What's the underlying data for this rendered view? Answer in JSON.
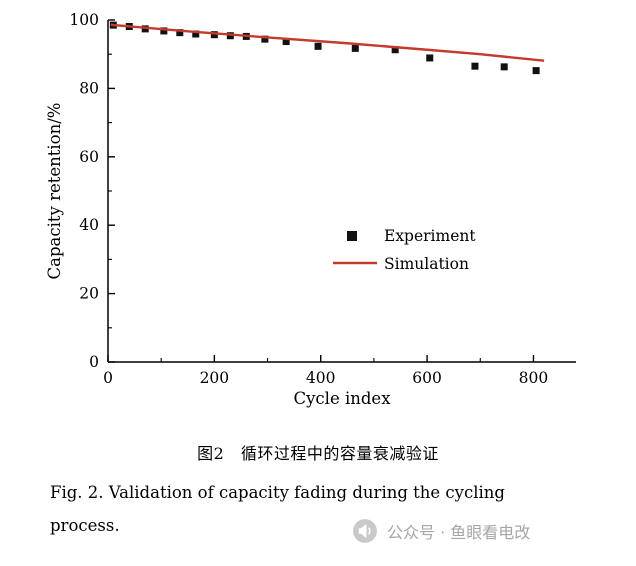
{
  "chart_data": {
    "type": "scatter",
    "title": "",
    "xlabel": "Cycle index",
    "ylabel": "Capacity retention/%",
    "xlim": [
      0,
      880
    ],
    "ylim": [
      0,
      100
    ],
    "xticks": [
      0,
      200,
      400,
      600,
      800
    ],
    "yticks": [
      0,
      20,
      40,
      60,
      80,
      100
    ],
    "x_minor_step": 100,
    "y_minor_step": 10,
    "grid": false,
    "legend_position": "center-right-inside",
    "series": [
      {
        "name": "Experiment",
        "type": "scatter",
        "marker": "square",
        "color": "#111111",
        "points": [
          [
            10,
            98.5
          ],
          [
            40,
            98.1
          ],
          [
            70,
            97.4
          ],
          [
            105,
            96.8
          ],
          [
            135,
            96.3
          ],
          [
            165,
            95.9
          ],
          [
            200,
            95.7
          ],
          [
            230,
            95.4
          ],
          [
            260,
            95.2
          ],
          [
            295,
            94.4
          ],
          [
            335,
            93.7
          ],
          [
            395,
            92.3
          ],
          [
            465,
            91.7
          ],
          [
            540,
            91.3
          ],
          [
            605,
            88.9
          ],
          [
            690,
            86.5
          ],
          [
            745,
            86.3
          ],
          [
            805,
            85.2
          ]
        ]
      },
      {
        "name": "Simulation",
        "type": "line",
        "color": "#c43a2d",
        "points": [
          [
            5,
            98.6
          ],
          [
            150,
            96.7
          ],
          [
            300,
            94.9
          ],
          [
            450,
            93.2
          ],
          [
            600,
            91.3
          ],
          [
            700,
            90.0
          ],
          [
            820,
            88.1
          ]
        ]
      }
    ]
  },
  "captions": {
    "chinese": "图2　循环过程中的容量衰减验证",
    "english_line1": "Fig. 2.  Validation of capacity fading during the cycling",
    "english_line2": "process."
  },
  "watermark": {
    "text": "公众号 · 鱼眼看电改",
    "icon": "megaphone-icon",
    "color": "#a6a6a6"
  }
}
